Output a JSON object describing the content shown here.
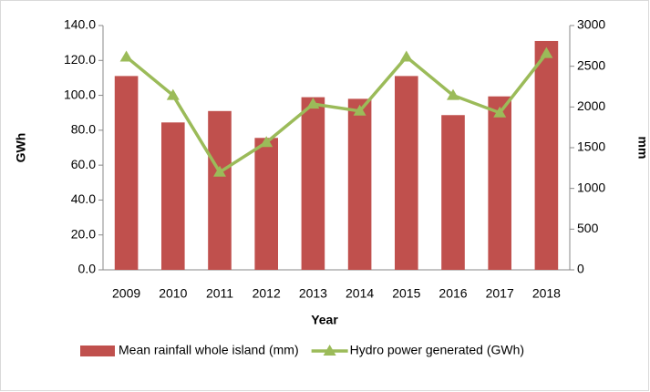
{
  "chart_data": {
    "type": "bar-line",
    "x_label": "Year",
    "y_label": "GWh",
    "y2_label": "mm",
    "categories": [
      "2009",
      "2010",
      "2011",
      "2012",
      "2013",
      "2014",
      "2015",
      "2016",
      "2017",
      "2018"
    ],
    "series": [
      {
        "name": "Mean rainfall whole island (mm)",
        "type": "bar",
        "axis": "y2",
        "color": "#c0504d",
        "values": [
          2380,
          1810,
          1950,
          1620,
          2120,
          2100,
          2380,
          1900,
          2130,
          2810
        ]
      },
      {
        "name": "Hydro power generated (GWh)",
        "type": "line",
        "axis": "y",
        "color": "#9bbb59",
        "values": [
          122,
          100,
          56,
          73,
          95,
          91,
          122,
          100,
          90,
          124
        ]
      }
    ],
    "ylim": [
      0,
      140
    ],
    "yticks": [
      {
        "value": 0,
        "label": "0.0"
      },
      {
        "value": 20,
        "label": "20.0"
      },
      {
        "value": 40,
        "label": "40.0"
      },
      {
        "value": 60,
        "label": "60.0"
      },
      {
        "value": 80,
        "label": "80.0"
      },
      {
        "value": 100,
        "label": "100.0"
      },
      {
        "value": 120,
        "label": "120.0"
      },
      {
        "value": 140,
        "label": "140.0"
      }
    ],
    "y2lim": [
      0,
      3000
    ],
    "y2ticks": [
      0,
      500,
      1000,
      1500,
      2000,
      2500,
      3000
    ],
    "legend": "bottom"
  }
}
